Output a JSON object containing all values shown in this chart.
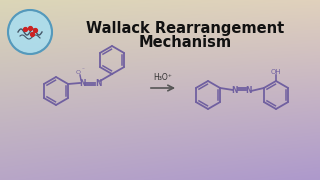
{
  "title_line1": "Wallack Rearrangement",
  "title_line2": "Mechanism",
  "title_fontsize": 10.5,
  "title_color": "#111111",
  "reagent_label": "H₃O⁺",
  "structure_color": "#7060a0",
  "arrow_color": "#555555",
  "lw": 1.3,
  "logo_circle_color": "#aaddee",
  "gradient_tl": [
    0.86,
    0.84,
    0.72
  ],
  "gradient_tr": [
    0.88,
    0.82,
    0.74
  ],
  "gradient_bl": [
    0.72,
    0.65,
    0.78
  ],
  "gradient_br": [
    0.68,
    0.6,
    0.8
  ]
}
